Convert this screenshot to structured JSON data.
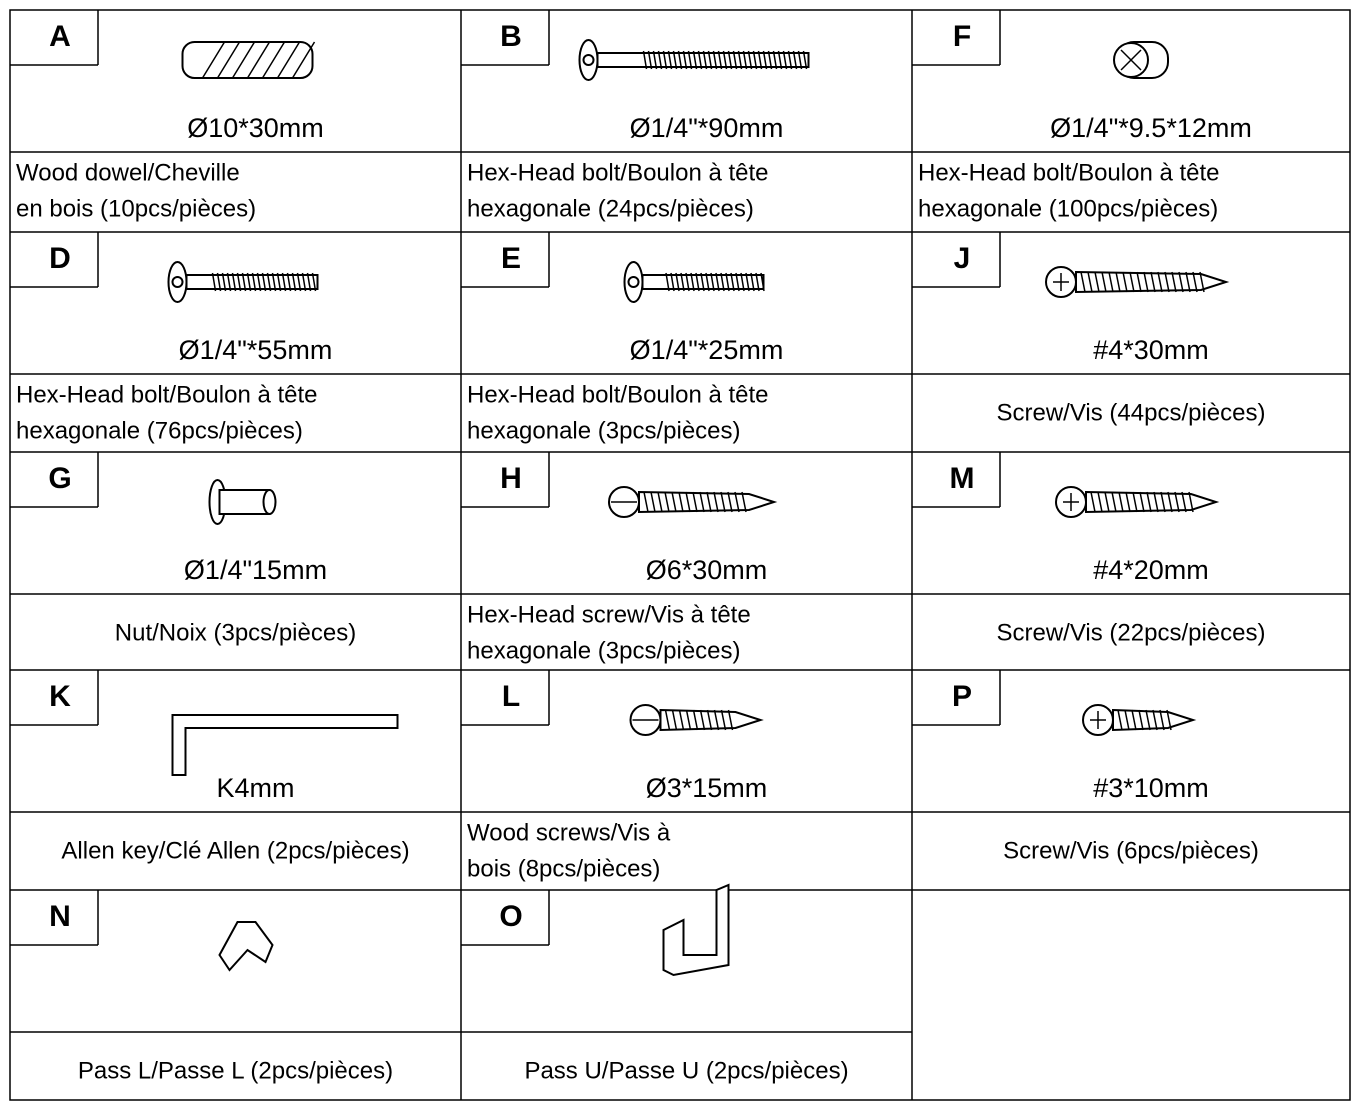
{
  "parts": [
    {
      "letter": "A",
      "size": "Ø10*30mm",
      "description": [
        "Wood dowel/Cheville",
        "en bois (10pcs/pièces)"
      ]
    },
    {
      "letter": "B",
      "size": "Ø1/4\"*90mm",
      "description": [
        "Hex-Head bolt/Boulon à tête",
        "hexagonale (24pcs/pièces)"
      ]
    },
    {
      "letter": "F",
      "size": "Ø1/4\"*9.5*12mm",
      "description": [
        "Hex-Head bolt/Boulon à tête",
        "hexagonale (100pcs/pièces)"
      ]
    },
    {
      "letter": "D",
      "size": "Ø1/4\"*55mm",
      "description": [
        "Hex-Head bolt/Boulon à tête",
        "hexagonale (76pcs/pièces)"
      ]
    },
    {
      "letter": "E",
      "size": "Ø1/4\"*25mm",
      "description": [
        "Hex-Head bolt/Boulon à tête",
        "hexagonale (3pcs/pièces)"
      ]
    },
    {
      "letter": "J",
      "size": "#4*30mm",
      "description": [
        "Screw/Vis (44pcs/pièces)"
      ]
    },
    {
      "letter": "G",
      "size": "Ø1/4\"15mm",
      "description": [
        "Nut/Noix (3pcs/pièces)"
      ]
    },
    {
      "letter": "H",
      "size": "Ø6*30mm",
      "description": [
        "Hex-Head screw/Vis à tête",
        "hexagonale (3pcs/pièces)"
      ]
    },
    {
      "letter": "M",
      "size": "#4*20mm",
      "description": [
        "Screw/Vis (22pcs/pièces)"
      ]
    },
    {
      "letter": "K",
      "size": "K4mm",
      "description": [
        "Allen key/Clé Allen (2pcs/pièces)"
      ]
    },
    {
      "letter": "L",
      "size": "Ø3*15mm",
      "description": [
        "Wood screws/Vis à",
        "bois (8pcs/pièces)"
      ]
    },
    {
      "letter": "P",
      "size": "#3*10mm",
      "description": [
        "Screw/Vis (6pcs/pièces)"
      ]
    },
    {
      "letter": "N",
      "description": [
        "Pass L/Passe L (2pcs/pièces)"
      ]
    },
    {
      "letter": "O",
      "description": [
        "Pass U/Passe U (2pcs/pièces)"
      ]
    }
  ]
}
